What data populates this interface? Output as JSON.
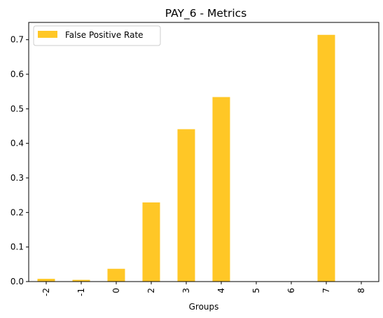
{
  "chart_data": {
    "type": "bar",
    "title": "PAY_6 - Metrics",
    "xlabel": "Groups",
    "ylabel": "",
    "categories": [
      "-2",
      "-1",
      "0",
      "2",
      "3",
      "4",
      "5",
      "6",
      "7",
      "8"
    ],
    "series": [
      {
        "name": "False Positive Rate",
        "color": "#ffc726",
        "values": [
          0.008,
          0.005,
          0.037,
          0.229,
          0.441,
          0.534,
          0.0,
          0.0,
          0.714,
          0.0
        ]
      }
    ],
    "ylim": [
      0,
      0.75
    ],
    "yticks": [
      0.0,
      0.1,
      0.2,
      0.3,
      0.4,
      0.5,
      0.6,
      0.7
    ],
    "ytick_labels": [
      "0.0",
      "0.1",
      "0.2",
      "0.3",
      "0.4",
      "0.5",
      "0.6",
      "0.7"
    ],
    "grid": false,
    "legend_position": "top-left"
  }
}
